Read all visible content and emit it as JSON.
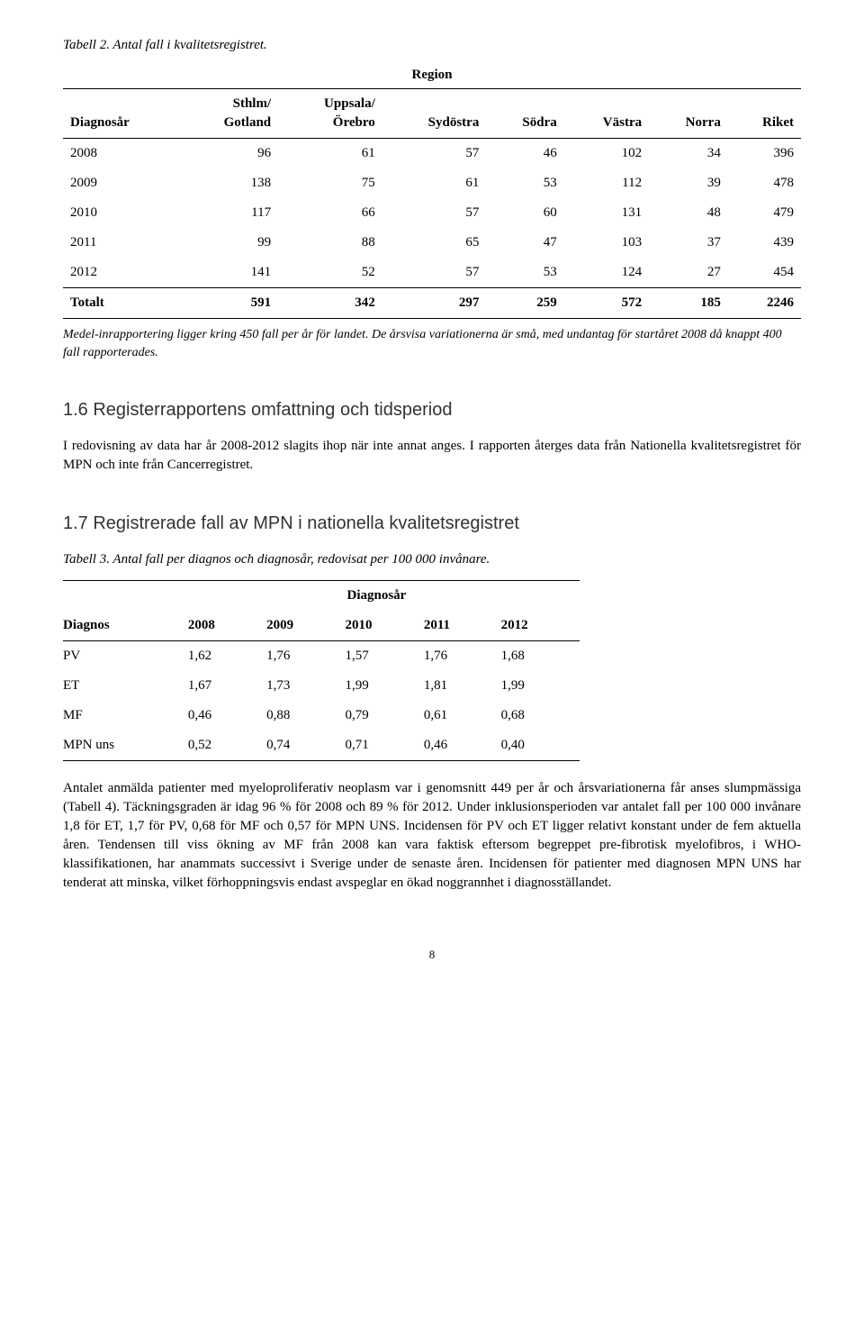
{
  "table2_caption": "Tabell 2. Antal fall i kvalitetsregistret.",
  "table1": {
    "super_header": "Region",
    "headers": [
      "Diagnosår",
      "Sthlm/\nGotland",
      "Uppsala/\nÖrebro",
      "Sydöstra",
      "Södra",
      "Västra",
      "Norra",
      "Riket"
    ],
    "rows": [
      [
        "2008",
        "96",
        "61",
        "57",
        "46",
        "102",
        "34",
        "396"
      ],
      [
        "2009",
        "138",
        "75",
        "61",
        "53",
        "112",
        "39",
        "478"
      ],
      [
        "2010",
        "117",
        "66",
        "57",
        "60",
        "131",
        "48",
        "479"
      ],
      [
        "2011",
        "99",
        "88",
        "65",
        "47",
        "103",
        "37",
        "439"
      ],
      [
        "2012",
        "141",
        "52",
        "57",
        "53",
        "124",
        "27",
        "454"
      ]
    ],
    "total_row": [
      "Totalt",
      "591",
      "342",
      "297",
      "259",
      "572",
      "185",
      "2246"
    ]
  },
  "footnote1": "Medel-inrapportering ligger kring 450 fall per år för landet. De årsvisa variationerna är små, med undantag för startåret 2008 då knappt 400 fall rapporterades.",
  "section16_title": "1.6   Registerrapportens omfattning och tidsperiod",
  "section16_body": "I redovisning av data har år 2008-2012 slagits ihop när inte annat anges. I rapporten återges data från Nationella kvalitetsregistret för MPN och inte från Cancerregistret.",
  "section17_title": "1.7   Registrerade fall av MPN i nationella kvalitetsregistret",
  "table3_caption": "Tabell 3. Antal fall per diagnos och diagnosår, redovisat per 100 000 invånare.",
  "table2": {
    "super_header": "Diagnosår",
    "col_label": "Diagnos",
    "years": [
      "2008",
      "2009",
      "2010",
      "2011",
      "2012"
    ],
    "rows": [
      [
        "PV",
        "1,62",
        "1,76",
        "1,57",
        "1,76",
        "1,68"
      ],
      [
        "ET",
        "1,67",
        "1,73",
        "1,99",
        "1,81",
        "1,99"
      ],
      [
        "MF",
        "0,46",
        "0,88",
        "0,79",
        "0,61",
        "0,68"
      ],
      [
        "MPN uns",
        "0,52",
        "0,74",
        "0,71",
        "0,46",
        "0,40"
      ]
    ]
  },
  "body_text": "Antalet anmälda patienter med myeloproliferativ neoplasm var i genomsnitt 449 per år och årsvariationerna får anses slumpmässiga (Tabell 4). Täckningsgraden är idag 96 % för 2008 och 89 % för 2012. Under inklusionsperioden var antalet fall per 100 000 invånare 1,8 för ET, 1,7 för PV, 0,68 för MF och 0,57 för MPN UNS. Incidensen för PV och ET ligger relativt konstant under de fem aktuella åren. Tendensen till viss ökning av MF från 2008 kan vara faktisk eftersom begreppet pre-fibrotisk myelofibros, i WHO-klassifikationen, har anammats successivt i Sverige under de senaste åren. Incidensen för patienter med diagnosen MPN UNS har tenderat att minska, vilket förhoppningsvis endast avspeglar en ökad noggrannhet i diagnosställandet.",
  "page_number": "8"
}
